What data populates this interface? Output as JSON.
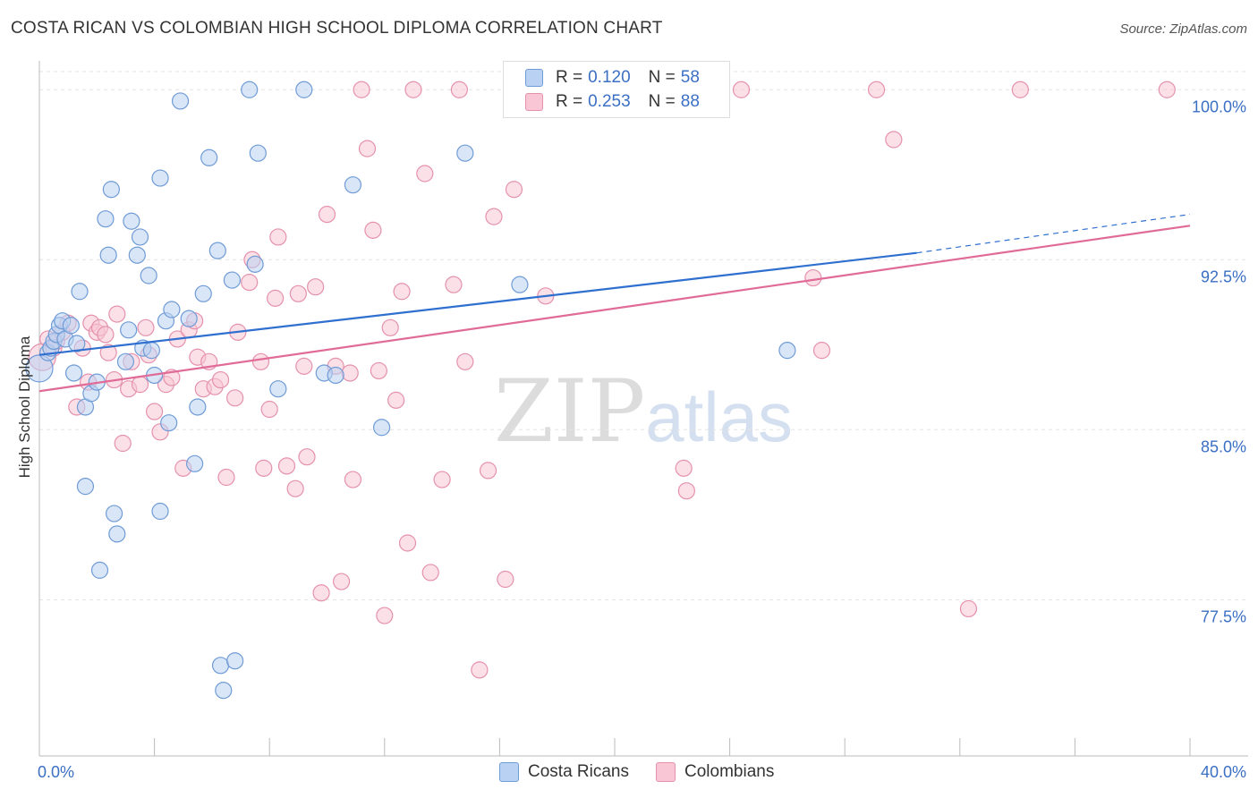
{
  "title": "COSTA RICAN VS COLOMBIAN HIGH SCHOOL DIPLOMA CORRELATION CHART",
  "source": "Source: ZipAtlas.com",
  "watermark": {
    "zip": "ZIP",
    "atlas": "atlas"
  },
  "legend": {
    "r_label": "R =",
    "n_label": "N =",
    "rows": [
      {
        "r": "0.120",
        "n": "58",
        "fill": "#b9d1f2",
        "stroke": "#7ea6dc"
      },
      {
        "r": "0.253",
        "n": "88",
        "fill": "#f8c6d4",
        "stroke": "#e898b2"
      }
    ]
  },
  "bottom_legend": [
    "Costa Ricans",
    "Colombians"
  ],
  "colors": {
    "blue_fill": "#b9d1f2",
    "blue_stroke": "#6f9bd6",
    "blue_line": "#2f6fcf",
    "pink_fill": "#f8c6d4",
    "pink_stroke": "#e591ad",
    "pink_line": "#e06b97",
    "axis_text": "#3b6fc4",
    "grid": "#e3e3e3"
  },
  "chart_data": {
    "type": "scatter",
    "title": "COSTA RICAN VS COLOMBIAN HIGH SCHOOL DIPLOMA CORRELATION CHART",
    "xlabel": "",
    "ylabel": "High School Diploma",
    "xlim": [
      0,
      40
    ],
    "ylim": [
      71.0,
      100.8
    ],
    "x_tick_labels": [
      {
        "value": 0,
        "label": "0.0%"
      },
      {
        "value": 40,
        "label": "40.0%"
      }
    ],
    "y_ticks": [
      {
        "value": 77.5,
        "label": "77.5%"
      },
      {
        "value": 85.0,
        "label": "85.0%"
      },
      {
        "value": 92.5,
        "label": "92.5%"
      },
      {
        "value": 100.0,
        "label": "100.0%"
      }
    ],
    "grid": true,
    "series": [
      {
        "name": "Costa Ricans",
        "R": 0.12,
        "N": 58,
        "trend": {
          "x": [
            0,
            30.5
          ],
          "y": [
            88.3,
            92.8
          ],
          "dashed_to": [
            40,
            94.5
          ]
        },
        "points": [
          [
            0.0,
            87.7,
            14
          ],
          [
            0.3,
            88.4,
            8
          ],
          [
            0.4,
            88.6,
            8
          ],
          [
            0.5,
            88.9,
            8
          ],
          [
            0.6,
            89.2,
            8
          ],
          [
            0.7,
            89.6,
            8
          ],
          [
            0.8,
            89.8,
            8
          ],
          [
            0.9,
            89.0,
            8
          ],
          [
            1.1,
            89.6,
            8
          ],
          [
            1.2,
            87.5,
            8
          ],
          [
            1.3,
            88.8,
            8
          ],
          [
            1.4,
            91.1,
            8
          ],
          [
            1.6,
            86.0,
            8
          ],
          [
            1.6,
            82.5,
            8
          ],
          [
            1.8,
            86.6,
            8
          ],
          [
            2.0,
            87.1,
            8
          ],
          [
            2.1,
            78.8,
            8
          ],
          [
            2.3,
            94.3,
            8
          ],
          [
            2.4,
            92.7,
            8
          ],
          [
            2.5,
            95.6,
            8
          ],
          [
            2.6,
            81.3,
            8
          ],
          [
            2.7,
            80.4,
            8
          ],
          [
            3.0,
            88.0,
            8
          ],
          [
            3.1,
            89.4,
            8
          ],
          [
            3.2,
            94.2,
            8
          ],
          [
            3.4,
            92.7,
            8
          ],
          [
            3.5,
            93.5,
            8
          ],
          [
            3.6,
            88.6,
            8
          ],
          [
            3.8,
            91.8,
            8
          ],
          [
            3.9,
            88.5,
            8
          ],
          [
            4.0,
            87.4,
            8
          ],
          [
            4.2,
            96.1,
            8
          ],
          [
            4.2,
            81.4,
            8
          ],
          [
            4.4,
            89.8,
            8
          ],
          [
            4.5,
            85.3,
            8
          ],
          [
            4.6,
            90.3,
            8
          ],
          [
            4.9,
            99.5,
            8
          ],
          [
            5.2,
            89.9,
            8
          ],
          [
            5.4,
            83.5,
            8
          ],
          [
            5.5,
            86.0,
            8
          ],
          [
            5.7,
            91.0,
            8
          ],
          [
            5.9,
            97.0,
            8
          ],
          [
            6.2,
            92.9,
            8
          ],
          [
            6.3,
            74.6,
            8
          ],
          [
            6.4,
            73.5,
            8
          ],
          [
            6.7,
            91.6,
            8
          ],
          [
            6.8,
            74.8,
            8
          ],
          [
            7.3,
            100.0,
            8
          ],
          [
            7.5,
            92.3,
            8
          ],
          [
            7.6,
            97.2,
            8
          ],
          [
            8.3,
            86.8,
            8
          ],
          [
            9.2,
            100.0,
            8
          ],
          [
            9.9,
            87.5,
            8
          ],
          [
            10.3,
            87.4,
            8
          ],
          [
            10.9,
            95.8,
            8
          ],
          [
            11.9,
            85.1,
            8
          ],
          [
            14.8,
            97.2,
            8
          ],
          [
            16.7,
            91.4,
            8
          ],
          [
            26.0,
            88.5,
            8
          ]
        ]
      },
      {
        "name": "Colombians",
        "R": 0.253,
        "N": 88,
        "trend": {
          "x": [
            0,
            40
          ],
          "y": [
            86.7,
            94.0
          ]
        },
        "points": [
          [
            0.1,
            88.2,
            14
          ],
          [
            0.3,
            89.0,
            8
          ],
          [
            0.5,
            88.6,
            8
          ],
          [
            0.6,
            88.9,
            8
          ],
          [
            0.8,
            89.3,
            8
          ],
          [
            1.0,
            89.7,
            8
          ],
          [
            1.3,
            86.0,
            8
          ],
          [
            1.5,
            88.6,
            8
          ],
          [
            1.7,
            87.1,
            8
          ],
          [
            1.8,
            89.7,
            8
          ],
          [
            2.0,
            89.3,
            8
          ],
          [
            2.1,
            89.5,
            8
          ],
          [
            2.3,
            89.2,
            8
          ],
          [
            2.4,
            88.4,
            8
          ],
          [
            2.6,
            87.2,
            8
          ],
          [
            2.7,
            90.1,
            8
          ],
          [
            2.9,
            84.4,
            8
          ],
          [
            3.1,
            86.8,
            8
          ],
          [
            3.2,
            88.0,
            8
          ],
          [
            3.5,
            87.0,
            8
          ],
          [
            3.7,
            89.5,
            8
          ],
          [
            3.8,
            88.3,
            8
          ],
          [
            4.0,
            85.8,
            8
          ],
          [
            4.2,
            84.9,
            8
          ],
          [
            4.4,
            87.0,
            8
          ],
          [
            4.6,
            87.3,
            8
          ],
          [
            4.8,
            89.0,
            8
          ],
          [
            5.0,
            83.3,
            8
          ],
          [
            5.2,
            89.4,
            8
          ],
          [
            5.4,
            89.8,
            8
          ],
          [
            5.5,
            88.2,
            8
          ],
          [
            5.7,
            86.8,
            8
          ],
          [
            5.9,
            88.0,
            8
          ],
          [
            6.1,
            86.9,
            8
          ],
          [
            6.3,
            87.2,
            8
          ],
          [
            6.5,
            82.9,
            8
          ],
          [
            6.8,
            86.4,
            8
          ],
          [
            6.9,
            89.3,
            8
          ],
          [
            7.3,
            91.5,
            8
          ],
          [
            7.4,
            92.5,
            8
          ],
          [
            7.7,
            88.0,
            8
          ],
          [
            7.8,
            83.3,
            8
          ],
          [
            8.0,
            85.9,
            8
          ],
          [
            8.2,
            90.8,
            8
          ],
          [
            8.3,
            93.5,
            8
          ],
          [
            8.6,
            83.4,
            8
          ],
          [
            8.9,
            82.4,
            8
          ],
          [
            9.0,
            91.0,
            8
          ],
          [
            9.2,
            87.8,
            8
          ],
          [
            9.3,
            83.8,
            8
          ],
          [
            9.6,
            91.3,
            8
          ],
          [
            9.8,
            77.8,
            8
          ],
          [
            10.0,
            94.5,
            8
          ],
          [
            10.3,
            87.8,
            8
          ],
          [
            10.5,
            78.3,
            8
          ],
          [
            10.8,
            87.5,
            8
          ],
          [
            10.9,
            82.8,
            8
          ],
          [
            11.2,
            100.0,
            8
          ],
          [
            11.4,
            97.4,
            8
          ],
          [
            11.6,
            93.8,
            8
          ],
          [
            11.8,
            87.6,
            8
          ],
          [
            12.0,
            76.8,
            8
          ],
          [
            12.2,
            89.5,
            8
          ],
          [
            12.4,
            86.3,
            8
          ],
          [
            12.6,
            91.1,
            8
          ],
          [
            12.8,
            80.0,
            8
          ],
          [
            13.0,
            100.0,
            8
          ],
          [
            13.4,
            96.3,
            8
          ],
          [
            13.6,
            78.7,
            8
          ],
          [
            14.0,
            82.8,
            8
          ],
          [
            14.4,
            91.4,
            8
          ],
          [
            14.6,
            100.0,
            8
          ],
          [
            14.8,
            88.0,
            8
          ],
          [
            15.3,
            74.4,
            8
          ],
          [
            15.6,
            83.2,
            8
          ],
          [
            15.8,
            94.4,
            8
          ],
          [
            16.2,
            78.4,
            8
          ],
          [
            16.5,
            95.6,
            8
          ],
          [
            17.6,
            90.9,
            8
          ],
          [
            22.4,
            83.3,
            8
          ],
          [
            22.5,
            82.3,
            8
          ],
          [
            24.4,
            100.0,
            8
          ],
          [
            26.9,
            91.7,
            8
          ],
          [
            27.2,
            88.5,
            8
          ],
          [
            29.1,
            100.0,
            8
          ],
          [
            29.7,
            97.8,
            8
          ],
          [
            32.3,
            77.1,
            8
          ],
          [
            34.1,
            100.0,
            8
          ],
          [
            39.2,
            100.0,
            8
          ]
        ]
      }
    ]
  }
}
